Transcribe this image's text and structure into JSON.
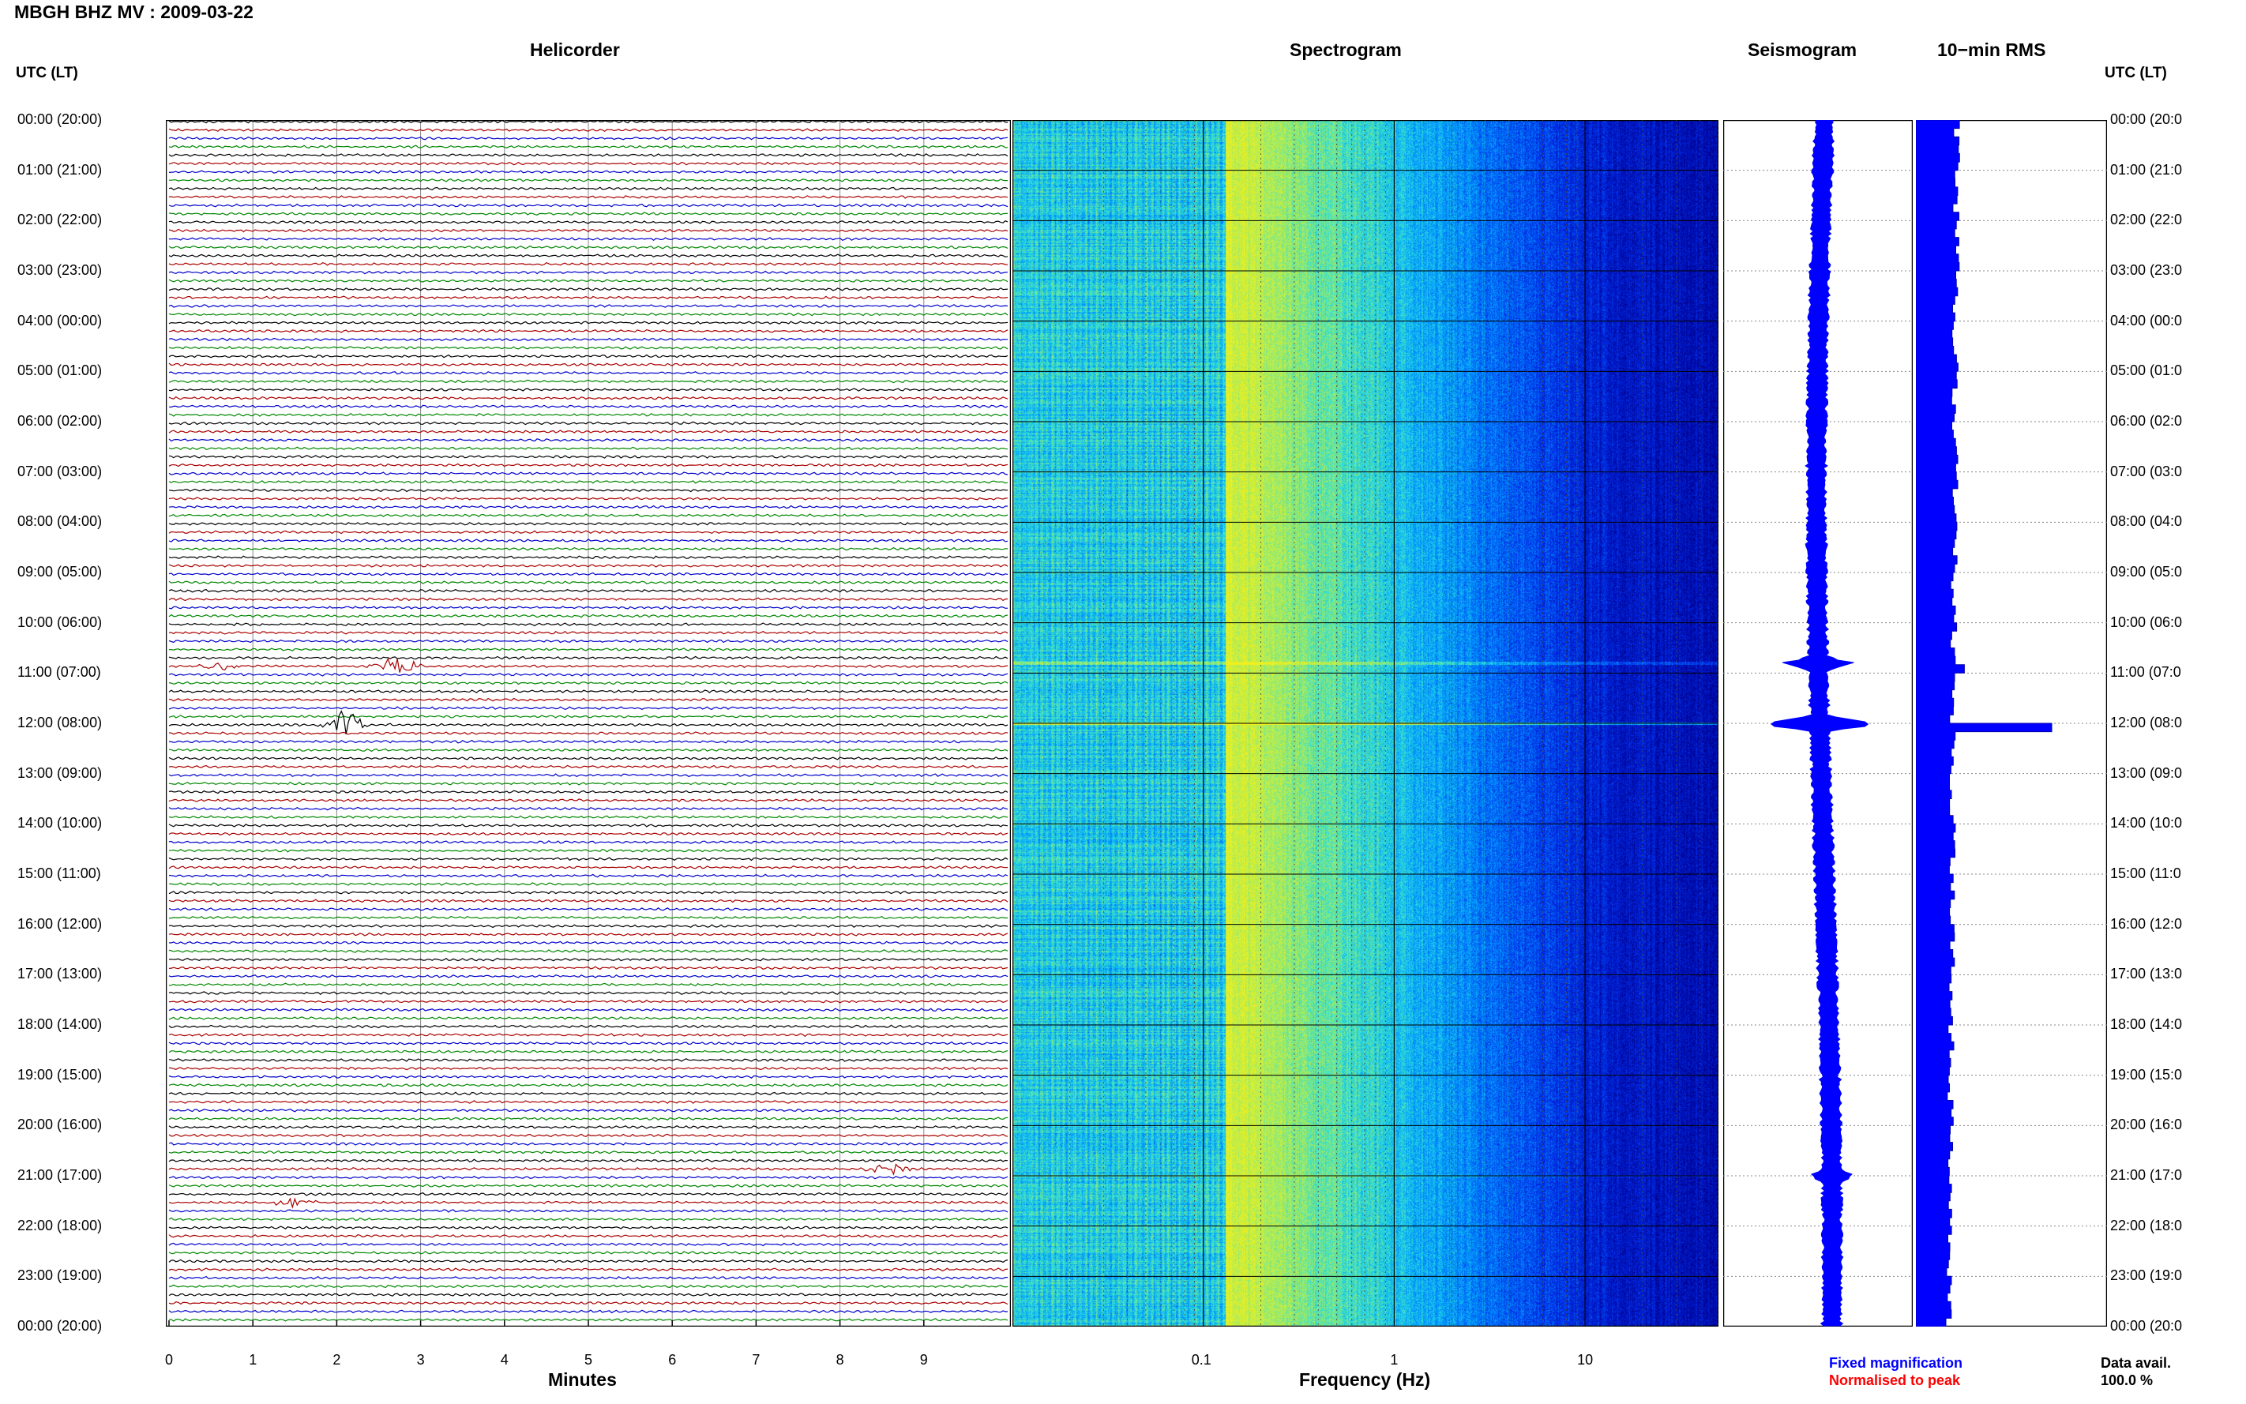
{
  "header": {
    "title": "MBGH BHZ MV : 2009-03-22"
  },
  "panels": {
    "helicorder": "Helicorder",
    "spectrogram": "Spectrogram",
    "seismogram": "Seismogram",
    "rms": "10−min RMS"
  },
  "axes": {
    "left_header": "UTC (LT)",
    "right_header": "UTC (LT)",
    "helicorder_xlabel": "Minutes",
    "spectrogram_xlabel": "Frequency (Hz)",
    "helicorder_ticks": [
      "0",
      "1",
      "2",
      "3",
      "4",
      "5",
      "6",
      "7",
      "8",
      "9"
    ],
    "spectrogram_ticks": [
      "0.1",
      "1",
      "10"
    ]
  },
  "time_labels_left": [
    "00:00 (20:00)",
    "01:00 (21:00)",
    "02:00 (22:00)",
    "03:00 (23:00)",
    "04:00 (00:00)",
    "05:00 (01:00)",
    "06:00 (02:00)",
    "07:00 (03:00)",
    "08:00 (04:00)",
    "09:00 (05:00)",
    "10:00 (06:00)",
    "11:00 (07:00)",
    "12:00 (08:00)",
    "13:00 (09:00)",
    "14:00 (10:00)",
    "15:00 (11:00)",
    "16:00 (12:00)",
    "17:00 (13:00)",
    "18:00 (14:00)",
    "19:00 (15:00)",
    "20:00 (16:00)",
    "21:00 (17:00)",
    "22:00 (18:00)",
    "23:00 (19:00)",
    "00:00 (20:00)"
  ],
  "time_labels_right": [
    "00:00 (20:0",
    "01:00 (21:0",
    "02:00 (22:0",
    "03:00 (23:0",
    "04:00 (00:0",
    "05:00 (01:0",
    "06:00 (02:0",
    "07:00 (03:0",
    "08:00 (04:0",
    "09:00 (05:0",
    "10:00 (06:0",
    "11:00 (07:0",
    "12:00 (08:0",
    "13:00 (09:0",
    "14:00 (10:0",
    "15:00 (11:0",
    "16:00 (12:0",
    "17:00 (13:0",
    "18:00 (14:0",
    "19:00 (15:0",
    "20:00 (16:0",
    "21:00 (17:0",
    "22:00 (18:0",
    "23:00 (19:0",
    "00:00 (20:0"
  ],
  "legend": {
    "fixed": "Fixed magnification",
    "normalised": "Normalised to peak",
    "fixed_color": "#0000ff",
    "normalised_color": "#ff0000"
  },
  "availability": {
    "label": "Data avail.",
    "value": "100.0 %"
  },
  "colors": {
    "trace_cycle": [
      "#000000",
      "#aa0000",
      "#0000cc",
      "#008800"
    ],
    "panel_blue": "#0000ff"
  },
  "chart_data": {
    "type": "heatmap",
    "title": "MBGH BHZ MV : 2009-03-22",
    "helicorder": {
      "xlabel": "Minutes",
      "xlim": [
        0,
        10
      ],
      "rows": 144,
      "row_minutes": 10,
      "events": [
        {
          "hour": 10.83,
          "minute": 0.6,
          "amp": 0.8
        },
        {
          "hour": 10.83,
          "minute": 2.7,
          "amp": 1.3
        },
        {
          "hour": 11.95,
          "minute": 2.1,
          "amp": 2.5
        },
        {
          "hour": 20.83,
          "minute": 8.6,
          "amp": 0.8
        },
        {
          "hour": 21.5,
          "minute": 1.5,
          "amp": 0.6
        }
      ]
    },
    "spectrogram": {
      "xlabel": "Frequency (Hz)",
      "xscale": "log",
      "xlim": [
        0.01,
        50
      ],
      "ylim_hours": [
        0,
        24
      ],
      "peak_band_hz": [
        0.15,
        0.4
      ]
    },
    "seismogram": {
      "annotations": [
        {
          "hour": 10.8,
          "amp": 0.45
        },
        {
          "hour": 12.0,
          "amp": 1.0
        },
        {
          "hour": 21.0,
          "amp": 0.2
        }
      ]
    },
    "rms_10min": {
      "base_fraction": 0.55,
      "peak": {
        "hour": 12.0,
        "fraction": 1.0
      }
    }
  }
}
